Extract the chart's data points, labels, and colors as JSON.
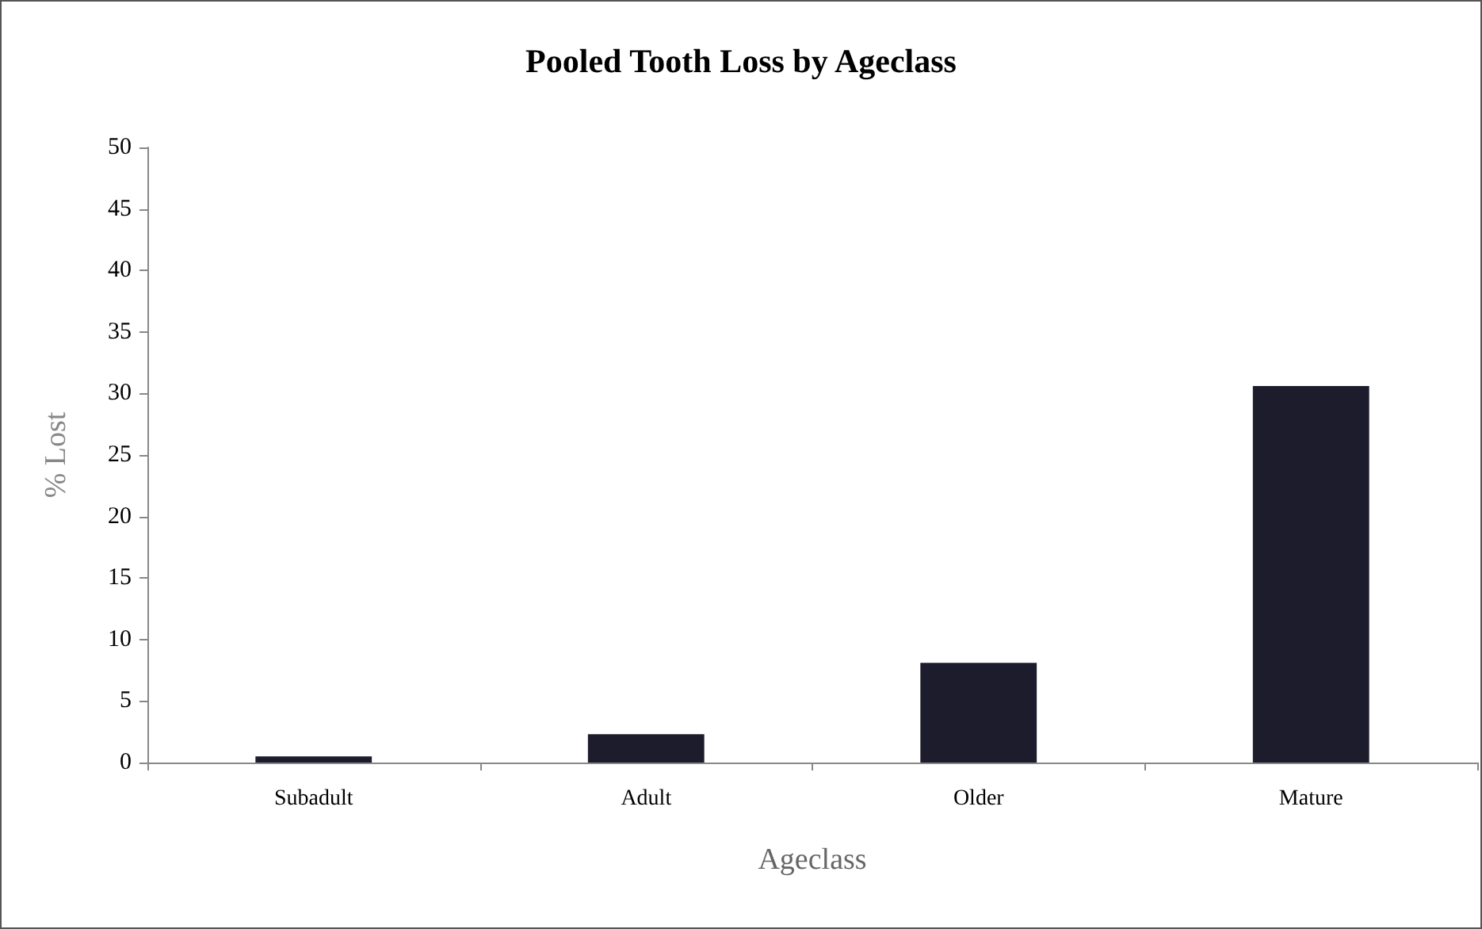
{
  "chart_data": {
    "type": "bar",
    "title": "Pooled Tooth Loss by Ageclass",
    "xlabel": "Ageclass",
    "ylabel": "% Lost",
    "categories": [
      "Subadult",
      "Adult",
      "Older",
      "Mature"
    ],
    "values": [
      0.5,
      2.3,
      8.1,
      30.6
    ],
    "color": "#1c1c2c",
    "ylim": [
      0,
      50
    ],
    "yticks": [
      0,
      5,
      10,
      15,
      20,
      25,
      30,
      35,
      40,
      45,
      50
    ],
    "grid": false
  }
}
